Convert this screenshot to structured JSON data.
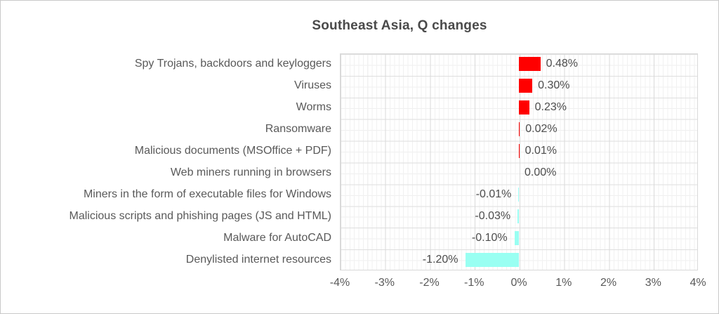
{
  "title": "Southeast Asia, Q changes",
  "chart_data": {
    "type": "bar",
    "orientation": "horizontal",
    "title": "Southeast Asia, Q changes",
    "categories": [
      "Spy Trojans, backdoors and keyloggers",
      "Viruses",
      "Worms",
      "Ransomware",
      "Malicious documents (MSOffice + PDF)",
      "Web miners running in browsers",
      "Miners in the form of executable files for Windows",
      "Malicious scripts and phishing pages (JS and HTML)",
      "Malware for AutoCAD",
      "Denylisted internet resources"
    ],
    "values": [
      0.48,
      0.3,
      0.23,
      0.02,
      0.01,
      0.0,
      -0.01,
      -0.03,
      -0.1,
      -1.2
    ],
    "value_labels": [
      "0.48%",
      "0.30%",
      "0.23%",
      "0.02%",
      "0.01%",
      "0.00%",
      "-0.01%",
      "-0.03%",
      "-0.10%",
      "-1.20%"
    ],
    "xlabel": "",
    "ylabel": "",
    "xlim": [
      -4,
      4
    ],
    "xticks": [
      -4,
      -3,
      -2,
      -1,
      0,
      1,
      2,
      3,
      4
    ],
    "xtick_labels": [
      "-4%",
      "-3%",
      "-2%",
      "-1%",
      "0%",
      "1%",
      "2%",
      "3%",
      "4%"
    ],
    "grid": true,
    "minor_grid": true,
    "legend": false,
    "colors": {
      "positive_bar": "#ff0000",
      "negative_bar": "#99fff2",
      "gridline_major": "#d9d9d9",
      "gridline_minor": "#f1f1f1",
      "text": "#595959",
      "title_text": "#4a4a4a"
    }
  }
}
